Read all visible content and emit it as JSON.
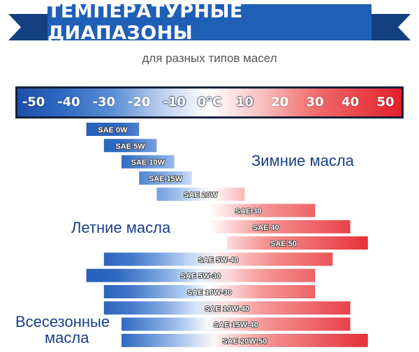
{
  "title": "ТЕМПЕРАТУРНЫЕ ДИАПАЗОНЫ",
  "subtitle": "для разных типов масел",
  "colors": {
    "banner": "#1f5fb5",
    "banner_dark": "#143f80",
    "cold": "#1f4fa8",
    "hot": "#e2202a",
    "group_text": "#1a3f8a"
  },
  "chart_data": {
    "type": "bar",
    "title": "ТЕМПЕРАТУРНЫЕ ДИАПАЗОНЫ",
    "subtitle": "для разных типов масел",
    "axis": {
      "min": -50,
      "max": 50,
      "ticks": [
        "-50",
        "-40",
        "-30",
        "-20",
        "-10",
        "0°C",
        "10",
        "20",
        "30",
        "40",
        "50"
      ]
    },
    "groups": [
      {
        "name": "Зимние масла",
        "items": [
          {
            "label": "SAE 0W",
            "min": -35,
            "max": -20
          },
          {
            "label": "SAE 5W",
            "min": -30,
            "max": -15
          },
          {
            "label": "SAE 10W",
            "min": -25,
            "max": -10
          },
          {
            "label": "SAE 15W",
            "min": -20,
            "max": -5
          },
          {
            "label": "SAE 20W",
            "min": -15,
            "max": 10
          }
        ]
      },
      {
        "name": "Летние масла",
        "items": [
          {
            "label": "SAE 30",
            "min": 0,
            "max": 30
          },
          {
            "label": "SAE 40",
            "min": 0,
            "max": 40
          },
          {
            "label": "SAE 50",
            "min": 5,
            "max": 45
          }
        ]
      },
      {
        "name": "Всесезонные масла",
        "items": [
          {
            "label": "SAE 5W-40",
            "min": -30,
            "max": 35
          },
          {
            "label": "SAE 5W-30",
            "min": -35,
            "max": 30
          },
          {
            "label": "SAE 10W-30",
            "min": -30,
            "max": 30
          },
          {
            "label": "SAE 10W-40",
            "min": -30,
            "max": 40
          },
          {
            "label": "SAE 15W-40",
            "min": -25,
            "max": 40
          },
          {
            "label": "SAE 20W-50",
            "min": -25,
            "max": 45
          }
        ]
      }
    ]
  },
  "group_labels": {
    "winter": "Зимние масла",
    "summer": "Летние масла",
    "allseason_line1": "Всесезонные",
    "allseason_line2": "масла"
  }
}
